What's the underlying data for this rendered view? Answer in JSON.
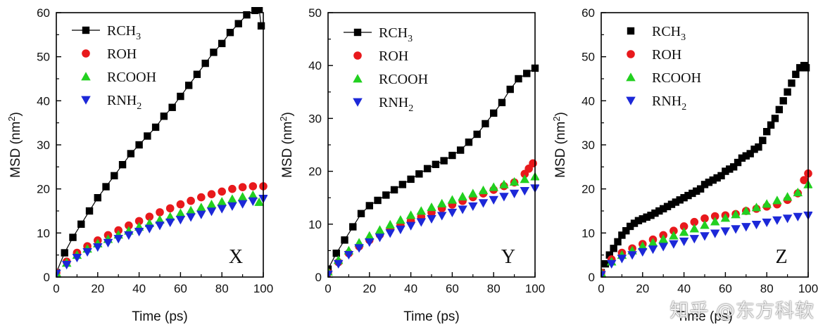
{
  "chart_data": [
    {
      "type": "scatter",
      "panel": "X",
      "xlabel": "Time (ps)",
      "ylabel": "MSD (nm²)",
      "ylabel_base": "MSD (nm",
      "ylabel_sup": "2",
      "ylabel_close": ")",
      "xlim": [
        0,
        100
      ],
      "ylim": [
        0,
        60
      ],
      "xticks": [
        0,
        20,
        40,
        60,
        80,
        100
      ],
      "yticks": [
        0,
        10,
        20,
        30,
        40,
        50,
        60
      ],
      "legend_position": "top-left",
      "series": [
        {
          "name": "RCH3",
          "label_base": "RCH",
          "label_sub": "3",
          "color": "#000000",
          "marker": "square",
          "line": true,
          "x": [
            0,
            4,
            8,
            12,
            16,
            20,
            24,
            28,
            32,
            36,
            40,
            44,
            48,
            52,
            56,
            60,
            64,
            68,
            72,
            76,
            80,
            84,
            88,
            92,
            96,
            98,
            99
          ],
          "y": [
            1,
            5.5,
            9,
            12,
            15,
            18,
            20.5,
            23,
            25.5,
            28,
            30,
            32,
            34,
            36.5,
            38.5,
            41,
            43.5,
            46,
            48.5,
            51,
            53,
            55.5,
            57.5,
            59.5,
            60.5,
            60.8,
            57
          ]
        },
        {
          "name": "ROH",
          "label_base": "ROH",
          "label_sub": "",
          "color": "#e8191c",
          "marker": "circle",
          "line": false,
          "x": [
            0,
            5,
            10,
            15,
            20,
            25,
            30,
            35,
            40,
            45,
            50,
            55,
            60,
            65,
            70,
            75,
            80,
            85,
            90,
            95,
            100
          ],
          "y": [
            1,
            3.5,
            5.5,
            7,
            8.3,
            9.5,
            10.6,
            11.7,
            12.7,
            13.7,
            14.7,
            15.6,
            16.5,
            17.3,
            18.1,
            18.8,
            19.4,
            20,
            20.4,
            20.6,
            20.6
          ]
        },
        {
          "name": "RCOOH",
          "label_base": "RCOOH",
          "label_sub": "",
          "color": "#22d020",
          "marker": "triangle-up",
          "line": false,
          "x": [
            0,
            5,
            10,
            15,
            20,
            25,
            30,
            35,
            40,
            45,
            50,
            55,
            60,
            65,
            70,
            75,
            80,
            85,
            90,
            95,
            98
          ],
          "y": [
            1,
            3.2,
            5,
            6.4,
            7.6,
            8.6,
            9.6,
            10.5,
            11.4,
            12.2,
            13,
            13.7,
            14.5,
            15.1,
            15.8,
            16.5,
            17.1,
            17.7,
            18.2,
            18.6,
            17
          ]
        },
        {
          "name": "RNH2",
          "label_base": "RNH",
          "label_sub": "2",
          "color": "#1c28d8",
          "marker": "triangle-down",
          "line": false,
          "x": [
            0,
            5,
            10,
            15,
            20,
            25,
            30,
            35,
            40,
            45,
            50,
            55,
            60,
            65,
            70,
            75,
            80,
            85,
            90,
            95,
            100
          ],
          "y": [
            0.8,
            2.8,
            4.4,
            5.7,
            6.8,
            7.8,
            8.7,
            9.5,
            10.3,
            11,
            11.7,
            12.4,
            13,
            13.6,
            14.2,
            14.9,
            15.5,
            16.1,
            16.6,
            17.2,
            17.8
          ]
        }
      ]
    },
    {
      "type": "scatter",
      "panel": "Y",
      "xlabel": "Time (ps)",
      "ylabel": "MSD (nm²)",
      "ylabel_base": "MSD (nm",
      "ylabel_sup": "2",
      "ylabel_close": ")",
      "xlim": [
        0,
        100
      ],
      "ylim": [
        0,
        50
      ],
      "xticks": [
        0,
        20,
        40,
        60,
        80,
        100
      ],
      "yticks": [
        0,
        10,
        20,
        30,
        40,
        50
      ],
      "legend_position": "top-left",
      "series": [
        {
          "name": "RCH3",
          "label_base": "RCH",
          "label_sub": "3",
          "color": "#000000",
          "marker": "square",
          "line": true,
          "x": [
            0,
            4,
            8,
            12,
            16,
            20,
            24,
            28,
            32,
            36,
            40,
            44,
            48,
            52,
            56,
            60,
            64,
            68,
            72,
            76,
            80,
            84,
            88,
            92,
            96,
            100
          ],
          "y": [
            1.5,
            4.5,
            7,
            9.5,
            12,
            13.5,
            14.5,
            15.5,
            16.5,
            17.5,
            18.5,
            19.5,
            20.5,
            21.3,
            22,
            23,
            24,
            25.5,
            27,
            29,
            31,
            33,
            35.5,
            37.5,
            38.5,
            39.5
          ]
        },
        {
          "name": "ROH",
          "label_base": "ROH",
          "label_sub": "",
          "color": "#e8191c",
          "marker": "circle",
          "line": false,
          "x": [
            0,
            5,
            10,
            15,
            20,
            25,
            30,
            35,
            40,
            45,
            50,
            55,
            60,
            65,
            70,
            75,
            80,
            85,
            90,
            95,
            97,
            99
          ],
          "y": [
            0.8,
            2.8,
            4.5,
            5.8,
            7,
            8,
            9,
            9.8,
            10.6,
            11.4,
            12.2,
            13,
            13.7,
            14.4,
            15.1,
            15.8,
            16.5,
            17.2,
            17.9,
            19.5,
            20.5,
            21.5
          ]
        },
        {
          "name": "RCOOH",
          "label_base": "RCOOH",
          "label_sub": "",
          "color": "#22d020",
          "marker": "triangle-up",
          "line": false,
          "x": [
            0,
            5,
            10,
            15,
            20,
            25,
            30,
            35,
            40,
            45,
            50,
            55,
            60,
            65,
            70,
            75,
            80,
            85,
            90,
            95,
            100
          ],
          "y": [
            1,
            3.2,
            5,
            6.5,
            7.8,
            8.9,
            9.9,
            10.8,
            11.7,
            12.5,
            13.2,
            13.9,
            14.6,
            15.2,
            15.8,
            16.4,
            17,
            17.5,
            18,
            18.5,
            19
          ]
        },
        {
          "name": "RNH2",
          "label_base": "RNH",
          "label_sub": "2",
          "color": "#1c28d8",
          "marker": "triangle-down",
          "line": false,
          "x": [
            0,
            5,
            10,
            15,
            20,
            25,
            30,
            35,
            40,
            45,
            50,
            55,
            60,
            65,
            70,
            75,
            80,
            85,
            90,
            95,
            100
          ],
          "y": [
            0.5,
            2.5,
            4.2,
            5.5,
            6.6,
            7.5,
            8.3,
            9,
            9.7,
            10.4,
            11,
            11.6,
            12.2,
            12.8,
            13.4,
            14,
            14.6,
            15.2,
            15.8,
            16.3,
            16.8
          ]
        }
      ]
    },
    {
      "type": "scatter",
      "panel": "Z",
      "xlabel": "Time (ps)",
      "ylabel": "MSD (nm²)",
      "ylabel_base": "MSD (nm",
      "ylabel_sup": "2",
      "ylabel_close": ")",
      "xlim": [
        0,
        100
      ],
      "ylim": [
        0,
        60
      ],
      "xticks": [
        0,
        20,
        40,
        60,
        80,
        100
      ],
      "yticks": [
        0,
        10,
        20,
        30,
        40,
        50,
        60
      ],
      "legend_position": "top-left",
      "series": [
        {
          "name": "RCH3",
          "label_base": "RCH",
          "label_sub": "3",
          "color": "#000000",
          "marker": "square",
          "line": false,
          "x": [
            0,
            2,
            4,
            6,
            8,
            10,
            12,
            14,
            16,
            18,
            20,
            22,
            24,
            26,
            28,
            30,
            32,
            34,
            36,
            38,
            40,
            42,
            44,
            46,
            48,
            50,
            52,
            54,
            56,
            58,
            60,
            62,
            64,
            66,
            68,
            70,
            72,
            74,
            76,
            78,
            80,
            82,
            84,
            86,
            88,
            90,
            92,
            94,
            96,
            98,
            99
          ],
          "y": [
            1,
            3,
            5,
            6.5,
            8,
            9.5,
            10.5,
            11.5,
            12.2,
            12.8,
            13.2,
            13.6,
            14,
            14.5,
            15,
            15.5,
            16,
            16.5,
            17,
            17.5,
            18,
            18.5,
            19,
            19.5,
            20,
            21,
            21.5,
            22,
            22.5,
            23,
            24,
            24.5,
            25,
            26,
            27,
            27.5,
            28,
            29,
            29.5,
            31,
            33,
            34.5,
            36,
            38,
            40,
            42,
            44,
            46,
            47.5,
            48,
            47.5
          ]
        },
        {
          "name": "ROH",
          "label_base": "ROH",
          "label_sub": "",
          "color": "#e8191c",
          "marker": "circle",
          "line": false,
          "x": [
            0,
            5,
            10,
            15,
            20,
            25,
            30,
            35,
            40,
            45,
            50,
            55,
            60,
            65,
            70,
            75,
            80,
            85,
            90,
            95,
            98,
            100
          ],
          "y": [
            1,
            4,
            5.5,
            6.5,
            7.5,
            8.5,
            9.5,
            10.5,
            11.5,
            12.5,
            13.3,
            13.8,
            14,
            14.3,
            15,
            15.5,
            16,
            16.5,
            17.5,
            19,
            22,
            23.5
          ]
        },
        {
          "name": "RCOOH",
          "label_base": "RCOOH",
          "label_sub": "",
          "color": "#22d020",
          "marker": "triangle-up",
          "line": false,
          "x": [
            0,
            5,
            10,
            15,
            20,
            25,
            30,
            35,
            40,
            45,
            50,
            55,
            60,
            65,
            70,
            75,
            80,
            85,
            90,
            95,
            100
          ],
          "y": [
            1,
            3.5,
            5,
            6,
            7,
            7.8,
            8.6,
            9.4,
            10.2,
            11,
            11.8,
            12.6,
            13.4,
            14.2,
            15,
            15.8,
            16.6,
            17.4,
            18.2,
            19.2,
            21
          ]
        },
        {
          "name": "RNH2",
          "label_base": "RNH",
          "label_sub": "2",
          "color": "#1c28d8",
          "marker": "triangle-down",
          "line": false,
          "x": [
            0,
            5,
            10,
            15,
            20,
            25,
            30,
            35,
            40,
            45,
            50,
            55,
            60,
            65,
            70,
            75,
            80,
            85,
            90,
            95,
            100
          ],
          "y": [
            0.5,
            3,
            4.2,
            5,
            5.7,
            6.3,
            6.9,
            7.5,
            8.1,
            8.7,
            9.3,
            9.9,
            10.4,
            10.9,
            11.4,
            11.9,
            12.4,
            12.9,
            13.3,
            13.7,
            14
          ]
        }
      ]
    }
  ],
  "watermark": "知乎 @东方科软"
}
